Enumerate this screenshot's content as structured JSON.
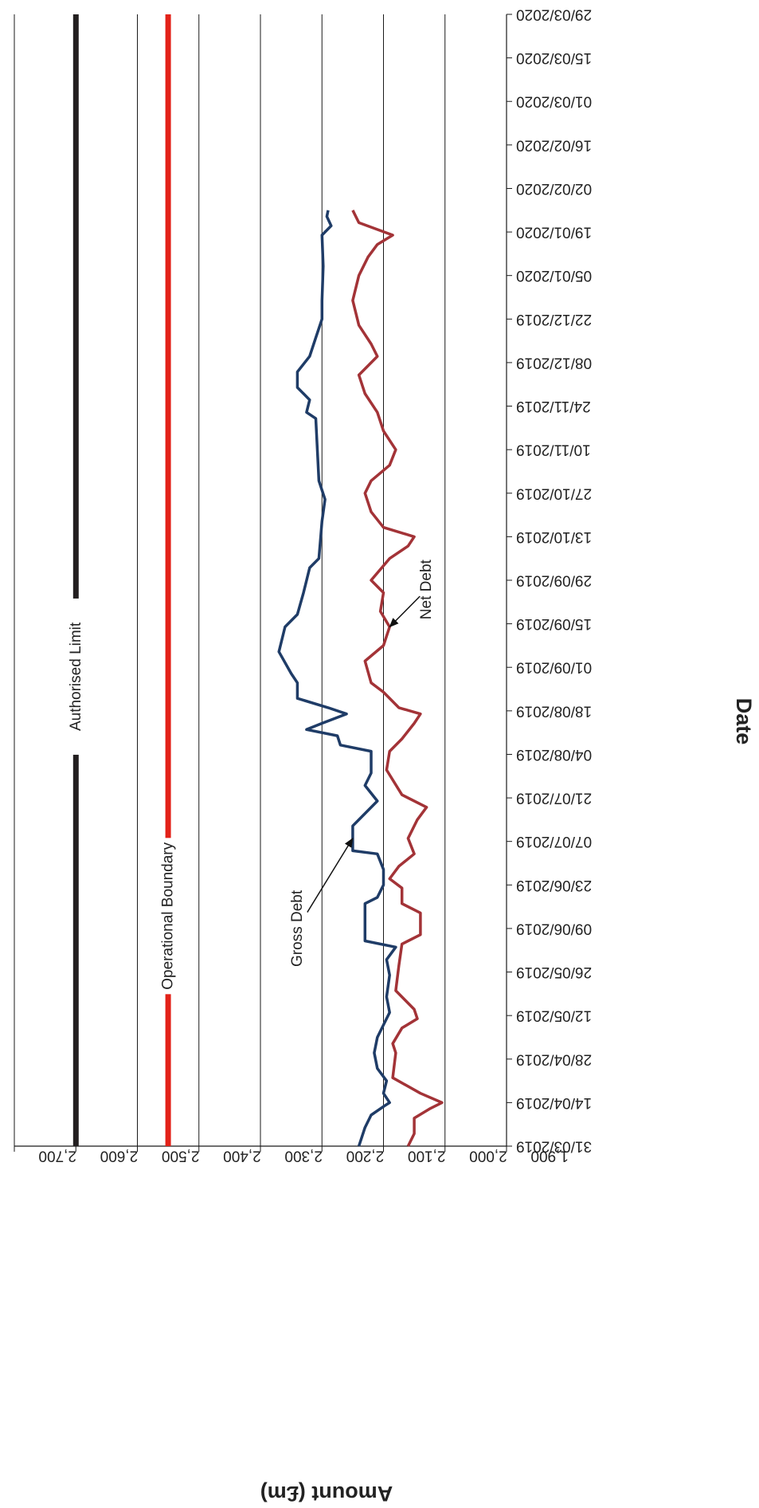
{
  "chart_data": {
    "type": "line",
    "title": "",
    "xlabel": "Date",
    "ylabel": "Amount (£m)",
    "ylim": [
      1900,
      2700
    ],
    "y_ticks": [
      1900,
      2000,
      2100,
      2200,
      2300,
      2400,
      2500,
      2600,
      2700
    ],
    "y_tick_labels": [
      "1,900",
      "2,000",
      "2,100",
      "2,200",
      "2,300",
      "2,400",
      "2,500",
      "2,600",
      "2,700"
    ],
    "x_ticks": [
      "31/03/2019",
      "14/04/2019",
      "28/04/2019",
      "12/05/2019",
      "26/05/2019",
      "09/06/2019",
      "23/06/2019",
      "07/07/2019",
      "21/07/2019",
      "04/08/2019",
      "18/08/2019",
      "01/09/2019",
      "15/09/2019",
      "29/09/2019",
      "13/10/2019",
      "27/10/2019",
      "10/11/2019",
      "24/11/2019",
      "08/12/2019",
      "22/12/2019",
      "05/01/2020",
      "19/01/2020",
      "02/02/2020",
      "16/02/2020",
      "01/03/2020",
      "15/03/2020",
      "29/03/2020"
    ],
    "xlim": [
      "31/03/2019",
      "29/03/2020"
    ],
    "orientation": "rotated 90 degrees clockwise (date axis runs down the right side, amount axis along the bottom reading right to left)",
    "grid": "vertical lines at each amount tick",
    "series": [
      {
        "name": "Authorised Limit",
        "color": "#231f20",
        "points": [
          [
            "31/03/2019",
            2600
          ],
          [
            "29/09/2019",
            2600
          ],
          [
            "29/03/2020",
            2600
          ]
        ]
      },
      {
        "name": "Operational Boundary",
        "color": "#e32219",
        "points": [
          [
            "31/03/2019",
            2450
          ],
          [
            "29/03/2020",
            2450
          ]
        ]
      },
      {
        "name": "Gross Debt",
        "color": "#1f3c67",
        "points": [
          [
            "31/03/2019",
            2140
          ],
          [
            "06/04/2019",
            2130
          ],
          [
            "10/04/2019",
            2120
          ],
          [
            "13/04/2019",
            2098
          ],
          [
            "14/04/2019",
            2090
          ],
          [
            "17/04/2019",
            2100
          ],
          [
            "21/04/2019",
            2095
          ],
          [
            "25/04/2019",
            2110
          ],
          [
            "30/04/2019",
            2115
          ],
          [
            "05/05/2019",
            2110
          ],
          [
            "09/05/2019",
            2100
          ],
          [
            "13/05/2019",
            2090
          ],
          [
            "18/05/2019",
            2095
          ],
          [
            "25/05/2019",
            2090
          ],
          [
            "30/05/2019",
            2095
          ],
          [
            "03/06/2019",
            2080
          ],
          [
            "05/06/2019",
            2130
          ],
          [
            "17/06/2019",
            2130
          ],
          [
            "19/06/2019",
            2110
          ],
          [
            "23/06/2019",
            2100
          ],
          [
            "28/06/2019",
            2100
          ],
          [
            "03/07/2019",
            2110
          ],
          [
            "04/07/2019",
            2150
          ],
          [
            "12/07/2019",
            2150
          ],
          [
            "15/07/2019",
            2135
          ],
          [
            "20/07/2019",
            2110
          ],
          [
            "25/07/2019",
            2130
          ],
          [
            "29/07/2019",
            2120
          ],
          [
            "05/08/2019",
            2120
          ],
          [
            "07/08/2019",
            2170
          ],
          [
            "10/08/2019",
            2175
          ],
          [
            "12/08/2019",
            2225
          ],
          [
            "14/08/2019",
            2200
          ],
          [
            "17/08/2019",
            2160
          ],
          [
            "19/08/2019",
            2190
          ],
          [
            "22/08/2019",
            2240
          ],
          [
            "27/08/2019",
            2240
          ],
          [
            "30/08/2019",
            2250
          ],
          [
            "06/09/2019",
            2270
          ],
          [
            "14/09/2019",
            2260
          ],
          [
            "18/09/2019",
            2240
          ],
          [
            "25/09/2019",
            2230
          ],
          [
            "03/10/2019",
            2220
          ],
          [
            "06/10/2019",
            2205
          ],
          [
            "18/10/2019",
            2200
          ],
          [
            "25/10/2019",
            2195
          ],
          [
            "31/10/2019",
            2205
          ],
          [
            "20/11/2019",
            2210
          ],
          [
            "22/11/2019",
            2225
          ],
          [
            "26/11/2019",
            2220
          ],
          [
            "30/11/2019",
            2240
          ],
          [
            "05/12/2019",
            2240
          ],
          [
            "10/12/2019",
            2220
          ],
          [
            "16/12/2019",
            2210
          ],
          [
            "22/12/2019",
            2200
          ],
          [
            "28/12/2019",
            2200
          ],
          [
            "08/01/2020",
            2198
          ],
          [
            "18/01/2020",
            2200
          ],
          [
            "21/01/2020",
            2185
          ],
          [
            "24/01/2020",
            2192
          ],
          [
            "26/01/2020",
            2190
          ]
        ]
      },
      {
        "name": "Net Debt",
        "color": "#a33337",
        "points": [
          [
            "31/03/2019",
            2060
          ],
          [
            "04/04/2019",
            2050
          ],
          [
            "09/04/2019",
            2050
          ],
          [
            "12/04/2019",
            2025
          ],
          [
            "14/04/2019",
            2005
          ],
          [
            "17/04/2019",
            2040
          ],
          [
            "22/04/2019",
            2085
          ],
          [
            "30/04/2019",
            2080
          ],
          [
            "03/05/2019",
            2085
          ],
          [
            "08/05/2019",
            2070
          ],
          [
            "11/05/2019",
            2045
          ],
          [
            "14/05/2019",
            2050
          ],
          [
            "20/05/2019",
            2080
          ],
          [
            "28/05/2019",
            2075
          ],
          [
            "04/06/2019",
            2070
          ],
          [
            "07/06/2019",
            2040
          ],
          [
            "14/06/2019",
            2040
          ],
          [
            "17/06/2019",
            2070
          ],
          [
            "22/06/2019",
            2070
          ],
          [
            "25/06/2019",
            2090
          ],
          [
            "29/06/2019",
            2075
          ],
          [
            "03/07/2019",
            2050
          ],
          [
            "08/07/2019",
            2060
          ],
          [
            "14/07/2019",
            2045
          ],
          [
            "18/07/2019",
            2030
          ],
          [
            "22/07/2019",
            2070
          ],
          [
            "30/07/2019",
            2095
          ],
          [
            "05/08/2019",
            2090
          ],
          [
            "09/08/2019",
            2070
          ],
          [
            "14/08/2019",
            2050
          ],
          [
            "17/08/2019",
            2040
          ],
          [
            "19/08/2019",
            2075
          ],
          [
            "24/08/2019",
            2100
          ],
          [
            "27/08/2019",
            2120
          ],
          [
            "03/09/2019",
            2130
          ],
          [
            "08/09/2019",
            2100
          ],
          [
            "14/09/2019",
            2090
          ],
          [
            "19/09/2019",
            2105
          ],
          [
            "25/09/2019",
            2100
          ],
          [
            "29/09/2019",
            2120
          ],
          [
            "06/10/2019",
            2090
          ],
          [
            "10/10/2019",
            2060
          ],
          [
            "13/10/2019",
            2050
          ],
          [
            "16/10/2019",
            2100
          ],
          [
            "21/10/2019",
            2120
          ],
          [
            "27/10/2019",
            2130
          ],
          [
            "31/10/2019",
            2120
          ],
          [
            "05/11/2019",
            2090
          ],
          [
            "10/11/2019",
            2080
          ],
          [
            "16/11/2019",
            2100
          ],
          [
            "22/11/2019",
            2110
          ],
          [
            "28/11/2019",
            2130
          ],
          [
            "04/12/2019",
            2140
          ],
          [
            "10/12/2019",
            2110
          ],
          [
            "14/12/2019",
            2120
          ],
          [
            "20/12/2019",
            2140
          ],
          [
            "28/12/2019",
            2150
          ],
          [
            "05/01/2020",
            2140
          ],
          [
            "11/01/2020",
            2125
          ],
          [
            "15/01/2020",
            2110
          ],
          [
            "18/01/2020",
            2085
          ],
          [
            "22/01/2020",
            2140
          ],
          [
            "26/01/2020",
            2150
          ]
        ]
      }
    ],
    "annotations": [
      {
        "text": "Authorised Limit",
        "at": [
          "29/08/2019",
          2600
        ]
      },
      {
        "text": "Operational Boundary",
        "at": [
          "13/06/2019",
          2450
        ]
      },
      {
        "text": "Gross Debt",
        "text_at": [
          "09/06/2019",
          2240
        ],
        "arrow_to": [
          "08/07/2019",
          2150
        ]
      },
      {
        "text": "Net Debt",
        "text_at": [
          "26/09/2019",
          2030
        ],
        "arrow_to": [
          "14/09/2019",
          2090
        ]
      }
    ]
  }
}
